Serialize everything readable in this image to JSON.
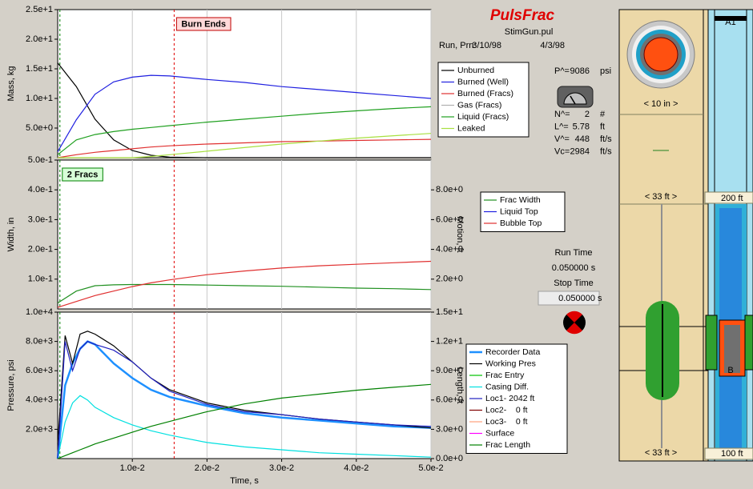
{
  "chart_data": [
    {
      "type": "line",
      "ylabel": "Mass, kg",
      "xlim": [
        0,
        0.05
      ],
      "xticks": [
        0.01,
        0.02,
        0.03,
        0.04,
        0.05
      ],
      "ylim": [
        0,
        25
      ],
      "yticks": [
        {
          "value": 5,
          "label": "5.0e+0"
        },
        {
          "value": 10,
          "label": "1.0e+1"
        },
        {
          "value": 15,
          "label": "1.5e+1"
        },
        {
          "value": 20,
          "label": "2.0e+1"
        },
        {
          "value": 25,
          "label": "2.5e+1"
        }
      ],
      "grid": true,
      "vlines": [
        {
          "x": 0.0003,
          "color": "#008000"
        },
        {
          "x": 0.0156,
          "color": "#e00000"
        }
      ],
      "annotations": [
        {
          "text": "Burn Ends",
          "x": 0.0156,
          "fill": "#ffdada",
          "color": "#c00000"
        }
      ],
      "x": [
        0,
        0.0025,
        0.005,
        0.0075,
        0.01,
        0.0125,
        0.015,
        0.02,
        0.025,
        0.03,
        0.035,
        0.04,
        0.045,
        0.05
      ],
      "series": [
        {
          "name": "Unburned",
          "color": "#000000",
          "values": [
            16,
            12,
            6.5,
            3,
            1.2,
            0.4,
            0.1,
            0,
            0,
            0,
            0,
            0,
            0,
            0
          ]
        },
        {
          "name": "Burned (Well)",
          "color": "#2020e0",
          "values": [
            1,
            6.4,
            10.7,
            12.8,
            13.6,
            13.9,
            13.8,
            13.2,
            12.7,
            12,
            11.5,
            11,
            10.5,
            10
          ]
        },
        {
          "name": "Burned (Fracs)",
          "color": "#e03030",
          "values": [
            0,
            0.5,
            0.9,
            1.2,
            1.5,
            1.8,
            2.0,
            2.3,
            2.5,
            2.7,
            2.8,
            2.9,
            3.0,
            3.1
          ]
        },
        {
          "name": "Gas (Fracs)",
          "color": "#b0b0b0",
          "values": [
            null,
            null,
            null,
            null,
            null,
            null,
            null,
            null,
            null,
            null,
            null,
            null,
            null,
            null
          ]
        },
        {
          "name": "Liquid (Fracs)",
          "color": "#20a020",
          "values": [
            0.5,
            3,
            3.9,
            4.4,
            4.8,
            5.1,
            5.4,
            6.0,
            6.5,
            7.0,
            7.5,
            7.9,
            8.3,
            8.6
          ]
        },
        {
          "name": "Leaked",
          "color": "#a8e040",
          "values": [
            0,
            0,
            0,
            0,
            0,
            0.2,
            0.5,
            1.1,
            1.7,
            2.3,
            2.8,
            3.3,
            3.7,
            4.1
          ]
        }
      ]
    },
    {
      "type": "line",
      "ylabel": "Width, in",
      "y2label": "Motion, ft",
      "xlim": [
        0,
        0.05
      ],
      "xticks": [
        0.01,
        0.02,
        0.03,
        0.04,
        0.05
      ],
      "ylim": [
        0,
        0.5
      ],
      "yticks": [
        {
          "value": 0.1,
          "label": "1.0e-1"
        },
        {
          "value": 0.2,
          "label": "2.0e-1"
        },
        {
          "value": 0.3,
          "label": "3.0e-1"
        },
        {
          "value": 0.4,
          "label": "4.0e-1"
        },
        {
          "value": 0.5,
          "label": "5.0e-1"
        }
      ],
      "y2lim": [
        0,
        10
      ],
      "y2ticks": [
        {
          "value": 2,
          "label": "2.0e+0"
        },
        {
          "value": 4,
          "label": "4.0e+0"
        },
        {
          "value": 6,
          "label": "6.0e+0"
        },
        {
          "value": 8,
          "label": "8.0e+0"
        }
      ],
      "grid": true,
      "vlines": [
        {
          "x": 0.0003,
          "color": "#008000"
        },
        {
          "x": 0.0156,
          "color": "#e00000"
        }
      ],
      "annotations": [
        {
          "text": "2 Fracs",
          "x": 0.0003,
          "fill": "#d8ffd8",
          "color": "#008000"
        }
      ],
      "x": [
        0,
        0.0025,
        0.005,
        0.0075,
        0.01,
        0.0125,
        0.015,
        0.02,
        0.025,
        0.03,
        0.035,
        0.04,
        0.045,
        0.05
      ],
      "series": [
        {
          "name": "Frac Width",
          "color": "#209020",
          "values": [
            0.02,
            0.06,
            0.078,
            0.081,
            0.082,
            0.082,
            0.082,
            0.08,
            0.078,
            0.076,
            0.073,
            0.07,
            0.068,
            0.065
          ]
        },
        {
          "name": "Liquid Top",
          "color": "#2020e0",
          "axis": "y2",
          "values": [
            null,
            null,
            null,
            null,
            null,
            null,
            null,
            null,
            null,
            null,
            null,
            null,
            null,
            null
          ]
        },
        {
          "name": "Bubble Top",
          "color": "#e03030",
          "axis": "y2",
          "values": [
            0.1,
            0.5,
            0.9,
            1.2,
            1.5,
            1.75,
            1.95,
            2.3,
            2.55,
            2.75,
            2.9,
            3.0,
            3.1,
            3.2
          ]
        }
      ]
    },
    {
      "type": "line",
      "ylabel": "Pressure, psi",
      "y2label": "Length, ft",
      "xlabel": "Time, s",
      "xlim": [
        0,
        0.05
      ],
      "xticks": [
        {
          "value": 0.01,
          "label": "1.0e-2"
        },
        {
          "value": 0.02,
          "label": "2.0e-2"
        },
        {
          "value": 0.03,
          "label": "3.0e-2"
        },
        {
          "value": 0.04,
          "label": "4.0e-2"
        },
        {
          "value": 0.05,
          "label": "5.0e-2"
        }
      ],
      "ylim": [
        0,
        10000
      ],
      "yticks": [
        {
          "value": 2000,
          "label": "2.0e+3"
        },
        {
          "value": 4000,
          "label": "4.0e+3"
        },
        {
          "value": 6000,
          "label": "6.0e+3"
        },
        {
          "value": 8000,
          "label": "8.0e+3"
        },
        {
          "value": 10000,
          "label": "1.0e+4"
        }
      ],
      "y2lim": [
        0,
        15
      ],
      "y2ticks": [
        {
          "value": 0,
          "label": "0.0e+0"
        },
        {
          "value": 3,
          "label": "3.0e+0"
        },
        {
          "value": 6,
          "label": "6.0e+0"
        },
        {
          "value": 9,
          "label": "9.0e+0"
        },
        {
          "value": 12,
          "label": "1.2e+1"
        },
        {
          "value": 15,
          "label": "1.5e+1"
        }
      ],
      "grid": true,
      "vlines": [
        {
          "x": 0.0003,
          "color": "#008000"
        },
        {
          "x": 0.0156,
          "color": "#e00000"
        }
      ],
      "x": [
        0,
        0.001,
        0.002,
        0.003,
        0.004,
        0.005,
        0.0075,
        0.01,
        0.0125,
        0.015,
        0.02,
        0.025,
        0.03,
        0.035,
        0.04,
        0.045,
        0.05
      ],
      "series": [
        {
          "name": "Recorder Data",
          "color": "#1e90ff",
          "width": 2.5,
          "values": [
            0,
            5000,
            6500,
            7500,
            8000,
            7800,
            6500,
            5500,
            4700,
            4200,
            3600,
            3100,
            2800,
            2600,
            2400,
            2200,
            2100
          ]
        },
        {
          "name": "Working Pres",
          "color": "#000000",
          "values": [
            1000,
            8400,
            6500,
            8500,
            8700,
            8500,
            7700,
            6600,
            5500,
            4700,
            3800,
            3300,
            3000,
            2700,
            2500,
            2300,
            2100
          ]
        },
        {
          "name": "Frac Entry",
          "color": "#00c000",
          "values": [
            null,
            null,
            null,
            null,
            null,
            null,
            null,
            null,
            null,
            null,
            null,
            null,
            null,
            null,
            null,
            null,
            null
          ]
        },
        {
          "name": "Casing Diff.",
          "color": "#00e0e0",
          "values": [
            0,
            2500,
            3800,
            4300,
            4000,
            3500,
            2800,
            2300,
            1900,
            1600,
            1100,
            800,
            600,
            400,
            300,
            200,
            100
          ]
        },
        {
          "name": "Loc1- 2042 ft",
          "color": "#2020c0",
          "values": [
            0,
            8000,
            6000,
            7500,
            8000,
            7800,
            7400,
            6600,
            5500,
            4600,
            3700,
            3200,
            3000,
            2700,
            2500,
            2300,
            2200
          ]
        },
        {
          "name": "Loc2-    0 ft",
          "color": "#800000",
          "values": [
            null,
            null,
            null,
            null,
            null,
            null,
            null,
            null,
            null,
            null,
            null,
            null,
            null,
            null,
            null,
            null,
            null
          ]
        },
        {
          "name": "Loc3-    0 ft",
          "color": "#ffa07a",
          "values": [
            null,
            null,
            null,
            null,
            null,
            null,
            null,
            null,
            null,
            null,
            null,
            null,
            null,
            null,
            null,
            null,
            null
          ]
        },
        {
          "name": "Surface",
          "color": "#ff00ff",
          "values": [
            null,
            null,
            null,
            null,
            null,
            null,
            null,
            null,
            null,
            null,
            null,
            null,
            null,
            null,
            null,
            null,
            null
          ]
        },
        {
          "name": "Frac Length",
          "color": "#008000",
          "axis": "y2",
          "values": [
            0,
            0.3,
            0.6,
            0.9,
            1.2,
            1.5,
            2.1,
            2.7,
            3.3,
            3.8,
            4.8,
            5.6,
            6.2,
            6.6,
            7.0,
            7.3,
            7.6
          ]
        }
      ]
    }
  ],
  "panel": {
    "title": "PulsFrac",
    "file": "StimGun.pul",
    "run_label": "Run, Prn:",
    "run_date": "3/10/98",
    "prn_date": "4/3/98",
    "pressure": {
      "label": "P^=",
      "value": "9086",
      "unit": "psi"
    },
    "params": [
      {
        "label": "N^=",
        "value": "2",
        "unit": "#"
      },
      {
        "label": "L^=",
        "value": "5.78",
        "unit": "ft"
      },
      {
        "label": "V^=",
        "value": "448",
        "unit": "ft/s"
      },
      {
        "label": "Vc=",
        "value": "2984",
        "unit": "ft/s"
      }
    ],
    "run_time_label": "Run Time",
    "run_time": "0.050000 s",
    "stop_time_label": "Stop Time",
    "stop_time": "0.050000",
    "stop_time_unit": "s"
  },
  "wellbore": {
    "top_label": "A1",
    "diameter": "< 10 in >",
    "spacing_top": "< 33 ft >",
    "depth_top": "200  ft",
    "spacing_bottom": "< 33 ft >",
    "depth_bottom": "100  ft",
    "gun_label": "B"
  }
}
